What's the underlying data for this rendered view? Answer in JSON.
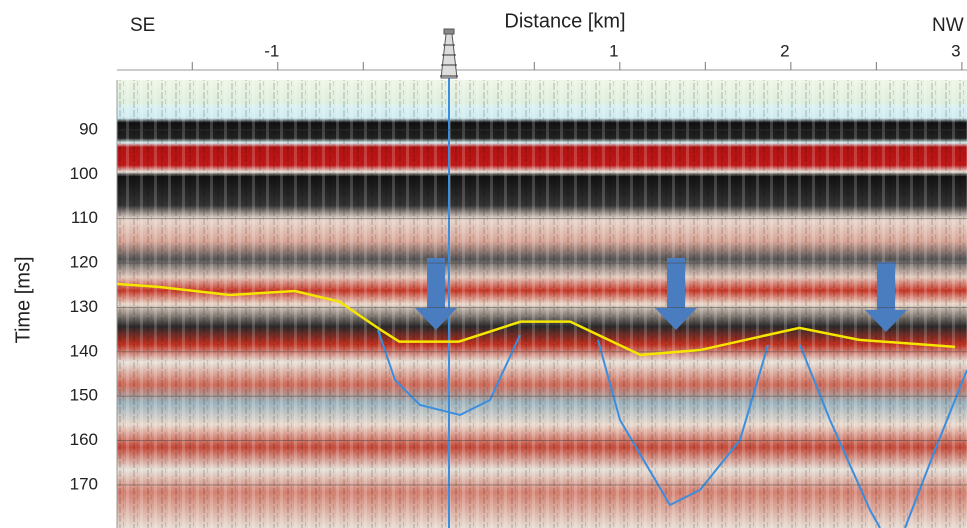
{
  "chart_data": {
    "type": "seismic",
    "x_axis_label": "Distance [km]",
    "y_axis_label": "Time [ms]",
    "left_label": "SE",
    "right_label": "NW",
    "xlim": [
      -1.94,
      3.03
    ],
    "xticks": [
      -1,
      1,
      2,
      3
    ],
    "xticks_minor": [
      -1.5,
      -0.5,
      0.5,
      1.5,
      2.5
    ],
    "ylim": [
      76.5,
      179.7
    ],
    "y_inverted": true,
    "yticks": [
      90,
      100,
      110,
      120,
      130,
      140,
      150,
      160,
      170
    ],
    "grid": true,
    "series": [
      {
        "color": "#f5e600",
        "x": [
          -1.94,
          -1.69,
          -1.28,
          -0.9,
          -0.64,
          -0.4,
          -0.29,
          0.06,
          0.42,
          0.71,
          1.12,
          1.47,
          2.05,
          2.4,
          2.96
        ],
        "values": [
          124.7,
          125.4,
          127.2,
          126.3,
          128.7,
          135.0,
          137.7,
          137.7,
          133.2,
          133.2,
          140.7,
          139.6,
          134.6,
          137.3,
          138.9
        ]
      }
    ]
  }
}
